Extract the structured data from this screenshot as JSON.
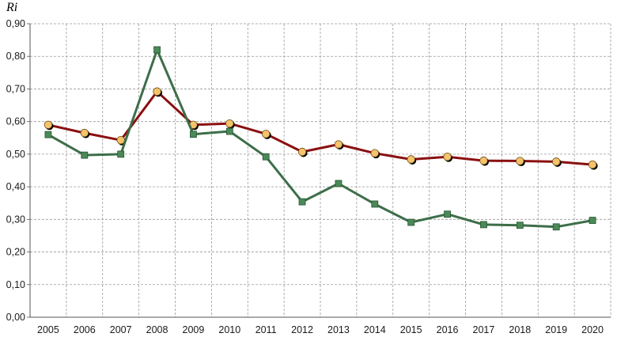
{
  "chart_data": {
    "type": "line",
    "ylabel": "Ri",
    "x": [
      "2005",
      "2006",
      "2007",
      "2008",
      "2009",
      "2010",
      "2011",
      "2012",
      "2013",
      "2014",
      "2015",
      "2016",
      "2017",
      "2018",
      "2019",
      "2020"
    ],
    "ylim": [
      0,
      0.9
    ],
    "yticks": [
      "0,00",
      "0,10",
      "0,20",
      "0,30",
      "0,40",
      "0,50",
      "0,60",
      "0,70",
      "0,80",
      "0,90"
    ],
    "grid": true,
    "legend": "none",
    "series": [
      {
        "color": "#8b0f0f",
        "marker": "circle",
        "marker_color": "#f5c36b",
        "values": [
          0.59,
          0.565,
          0.543,
          0.692,
          0.59,
          0.594,
          0.562,
          0.507,
          0.53,
          0.503,
          0.484,
          0.492,
          0.48,
          0.479,
          0.477,
          0.468
        ]
      },
      {
        "color": "#3d6e49",
        "marker": "square",
        "marker_color": "#4a8a57",
        "values": [
          0.56,
          0.497,
          0.5,
          0.82,
          0.561,
          0.57,
          0.492,
          0.354,
          0.41,
          0.347,
          0.291,
          0.316,
          0.284,
          0.282,
          0.277,
          0.297
        ]
      }
    ]
  }
}
